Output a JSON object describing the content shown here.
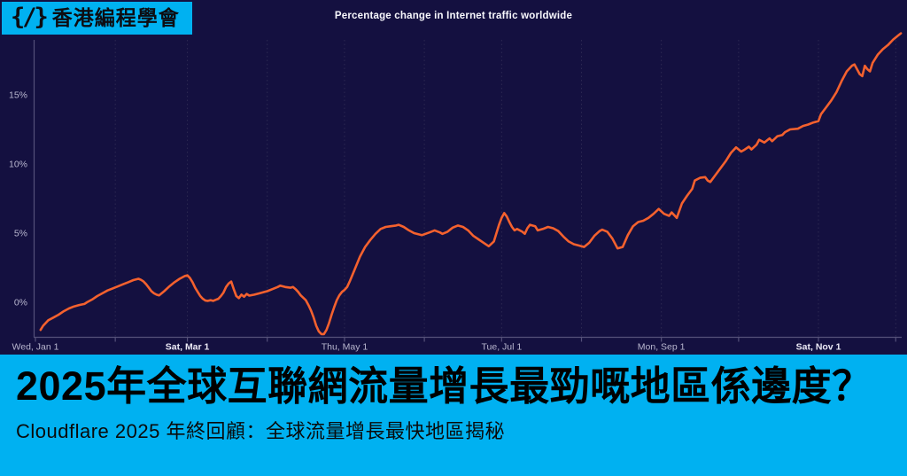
{
  "badge": {
    "logo": "{/}",
    "label": "香港編程學會"
  },
  "chart": {
    "title": "Percentage change in Internet traffic worldwide",
    "y_axis": {
      "ticks": [
        {
          "label": "0%",
          "value": 0
        },
        {
          "label": "5%",
          "value": 5
        },
        {
          "label": "10%",
          "value": 10
        },
        {
          "label": "15%",
          "value": 15
        }
      ]
    },
    "x_axis": {
      "labels": [
        {
          "label": "Wed, Jan 1",
          "day": 0,
          "bold": false
        },
        {
          "label": "Sat, Mar 1",
          "day": 59,
          "bold": true
        },
        {
          "label": "Thu, May 1",
          "day": 120,
          "bold": false
        },
        {
          "label": "Tue, Jul 1",
          "day": 181,
          "bold": false
        },
        {
          "label": "Mon, Sep 1",
          "day": 243,
          "bold": false
        },
        {
          "label": "Sat, Nov 1",
          "day": 304,
          "bold": true
        }
      ],
      "month_gridline_days": [
        31,
        59,
        90,
        120,
        151,
        181,
        212,
        243,
        273,
        304,
        334
      ],
      "tick_days": [
        0,
        31,
        59,
        90,
        120,
        151,
        181,
        212,
        243,
        273,
        304,
        334
      ]
    }
  },
  "chart_data": {
    "type": "line",
    "title": "Percentage change in Internet traffic worldwide",
    "x_unit": "day_of_year_2025",
    "xlabel": "",
    "ylabel": "Percentage change",
    "xlim_days": [
      0,
      336
    ],
    "ylim": [
      -2.5,
      19.3
    ],
    "grid": "monthly vertical dashed lines only",
    "legend": "none",
    "series": [
      {
        "name": "Internet traffic % change worldwide",
        "color": "#f4612e",
        "points": [
          [
            2,
            -2
          ],
          [
            3,
            -1.7
          ],
          [
            5,
            -1.3
          ],
          [
            7,
            -1.1
          ],
          [
            9,
            -0.9
          ],
          [
            11,
            -0.65
          ],
          [
            13,
            -0.45
          ],
          [
            15,
            -0.3
          ],
          [
            17,
            -0.2
          ],
          [
            19,
            -0.12
          ],
          [
            20,
            0
          ],
          [
            22,
            0.2
          ],
          [
            24,
            0.45
          ],
          [
            26,
            0.65
          ],
          [
            28,
            0.85
          ],
          [
            30,
            1
          ],
          [
            32,
            1.15
          ],
          [
            34,
            1.3
          ],
          [
            36,
            1.45
          ],
          [
            38,
            1.6
          ],
          [
            40,
            1.7
          ],
          [
            41,
            1.62
          ],
          [
            42,
            1.5
          ],
          [
            43,
            1.3
          ],
          [
            44,
            1.05
          ],
          [
            45,
            0.8
          ],
          [
            46,
            0.65
          ],
          [
            47,
            0.55
          ],
          [
            48,
            0.5
          ],
          [
            50,
            0.8
          ],
          [
            52,
            1.15
          ],
          [
            54,
            1.45
          ],
          [
            56,
            1.7
          ],
          [
            58,
            1.9
          ],
          [
            59,
            1.95
          ],
          [
            60,
            1.75
          ],
          [
            61,
            1.45
          ],
          [
            62,
            1.05
          ],
          [
            63,
            0.75
          ],
          [
            64,
            0.45
          ],
          [
            65,
            0.25
          ],
          [
            66,
            0.12
          ],
          [
            67,
            0.1
          ],
          [
            68,
            0.15
          ],
          [
            69,
            0.1
          ],
          [
            70,
            0.18
          ],
          [
            71,
            0.25
          ],
          [
            72,
            0.45
          ],
          [
            73,
            0.7
          ],
          [
            74,
            1.1
          ],
          [
            75,
            1.35
          ],
          [
            76,
            1.5
          ],
          [
            77,
            0.95
          ],
          [
            78,
            0.45
          ],
          [
            79,
            0.3
          ],
          [
            80,
            0.55
          ],
          [
            81,
            0.4
          ],
          [
            82,
            0.6
          ],
          [
            83,
            0.48
          ],
          [
            85,
            0.55
          ],
          [
            87,
            0.65
          ],
          [
            89,
            0.75
          ],
          [
            90,
            0.8
          ],
          [
            92,
            0.95
          ],
          [
            94,
            1.1
          ],
          [
            95,
            1.2
          ],
          [
            97,
            1.1
          ],
          [
            99,
            1.05
          ],
          [
            100,
            1.1
          ],
          [
            101,
            0.95
          ],
          [
            102,
            0.75
          ],
          [
            103,
            0.5
          ],
          [
            105,
            0.15
          ],
          [
            106,
            -0.2
          ],
          [
            107,
            -0.6
          ],
          [
            108,
            -1.1
          ],
          [
            109,
            -1.7
          ],
          [
            110,
            -2.1
          ],
          [
            111,
            -2.3
          ],
          [
            112,
            -2.3
          ],
          [
            113,
            -2
          ],
          [
            114,
            -1.5
          ],
          [
            115,
            -0.9
          ],
          [
            116,
            -0.35
          ],
          [
            117,
            0.15
          ],
          [
            118,
            0.5
          ],
          [
            119,
            0.75
          ],
          [
            120,
            0.9
          ],
          [
            121,
            1.1
          ],
          [
            122,
            1.5
          ],
          [
            124,
            2.4
          ],
          [
            126,
            3.3
          ],
          [
            128,
            4
          ],
          [
            130,
            4.5
          ],
          [
            132,
            4.95
          ],
          [
            134,
            5.3
          ],
          [
            136,
            5.45
          ],
          [
            138,
            5.5
          ],
          [
            140,
            5.55
          ],
          [
            141,
            5.6
          ],
          [
            143,
            5.45
          ],
          [
            145,
            5.2
          ],
          [
            147,
            5
          ],
          [
            150,
            4.85
          ],
          [
            153,
            5.05
          ],
          [
            155,
            5.2
          ],
          [
            157,
            5.05
          ],
          [
            158,
            4.95
          ],
          [
            160,
            5.1
          ],
          [
            162,
            5.4
          ],
          [
            164,
            5.55
          ],
          [
            166,
            5.45
          ],
          [
            168,
            5.2
          ],
          [
            170,
            4.8
          ],
          [
            172,
            4.55
          ],
          [
            174,
            4.3
          ],
          [
            176,
            4.05
          ],
          [
            178,
            4.4
          ],
          [
            179,
            5
          ],
          [
            180,
            5.6
          ],
          [
            181,
            6.1
          ],
          [
            182,
            6.45
          ],
          [
            183,
            6.2
          ],
          [
            184,
            5.8
          ],
          [
            185,
            5.45
          ],
          [
            186,
            5.2
          ],
          [
            187,
            5.3
          ],
          [
            189,
            5.1
          ],
          [
            190,
            4.95
          ],
          [
            191,
            5.35
          ],
          [
            192,
            5.6
          ],
          [
            194,
            5.5
          ],
          [
            195,
            5.2
          ],
          [
            197,
            5.3
          ],
          [
            199,
            5.45
          ],
          [
            201,
            5.35
          ],
          [
            203,
            5.15
          ],
          [
            205,
            4.75
          ],
          [
            207,
            4.4
          ],
          [
            209,
            4.2
          ],
          [
            211,
            4.1
          ],
          [
            213,
            4
          ],
          [
            215,
            4.3
          ],
          [
            217,
            4.8
          ],
          [
            219,
            5.15
          ],
          [
            220,
            5.25
          ],
          [
            222,
            5.1
          ],
          [
            224,
            4.6
          ],
          [
            226,
            3.9
          ],
          [
            228,
            4
          ],
          [
            230,
            4.85
          ],
          [
            232,
            5.5
          ],
          [
            234,
            5.8
          ],
          [
            236,
            5.9
          ],
          [
            238,
            6.1
          ],
          [
            240,
            6.4
          ],
          [
            242,
            6.75
          ],
          [
            244,
            6.4
          ],
          [
            246,
            6.25
          ],
          [
            247,
            6.5
          ],
          [
            249,
            6.1
          ],
          [
            251,
            7.15
          ],
          [
            253,
            7.7
          ],
          [
            255,
            8.2
          ],
          [
            256,
            8.8
          ],
          [
            258,
            9
          ],
          [
            260,
            9.05
          ],
          [
            261,
            8.8
          ],
          [
            262,
            8.7
          ],
          [
            264,
            9.2
          ],
          [
            266,
            9.7
          ],
          [
            268,
            10.2
          ],
          [
            270,
            10.8
          ],
          [
            272,
            11.2
          ],
          [
            274,
            10.9
          ],
          [
            275,
            11
          ],
          [
            277,
            11.25
          ],
          [
            278,
            11.05
          ],
          [
            280,
            11.4
          ],
          [
            281,
            11.75
          ],
          [
            283,
            11.55
          ],
          [
            285,
            11.85
          ],
          [
            286,
            11.65
          ],
          [
            288,
            12
          ],
          [
            290,
            12.1
          ],
          [
            291,
            12.3
          ],
          [
            293,
            12.5
          ],
          [
            296,
            12.55
          ],
          [
            298,
            12.75
          ],
          [
            300,
            12.85
          ],
          [
            302,
            13
          ],
          [
            304,
            13.1
          ],
          [
            305,
            13.6
          ],
          [
            307,
            14.1
          ],
          [
            309,
            14.6
          ],
          [
            311,
            15.2
          ],
          [
            313,
            16
          ],
          [
            315,
            16.7
          ],
          [
            317,
            17.1
          ],
          [
            318,
            17.2
          ],
          [
            320,
            16.5
          ],
          [
            321,
            16.35
          ],
          [
            322,
            17.1
          ],
          [
            323,
            16.85
          ],
          [
            324,
            16.7
          ],
          [
            325,
            17.3
          ],
          [
            327,
            17.9
          ],
          [
            329,
            18.3
          ],
          [
            331,
            18.6
          ],
          [
            333,
            19
          ],
          [
            335,
            19.3
          ],
          [
            336,
            19.45
          ]
        ]
      }
    ]
  },
  "banner": {
    "headline": "2025年全球互聯網流量增長最勁嘅地區係邊度？",
    "subtitle": "Cloudflare 2025 年終回顧：全球流量增長最快地區揭秘"
  },
  "colors": {
    "background": "#141040",
    "accent_cyan": "#00b1f1",
    "line_orange": "#f4612e",
    "axis": "#55517a",
    "gridline": "#2d2952",
    "tick_text": "#b9b7cf",
    "title_text": "#f7f7fc",
    "banner_text": "#000000"
  }
}
